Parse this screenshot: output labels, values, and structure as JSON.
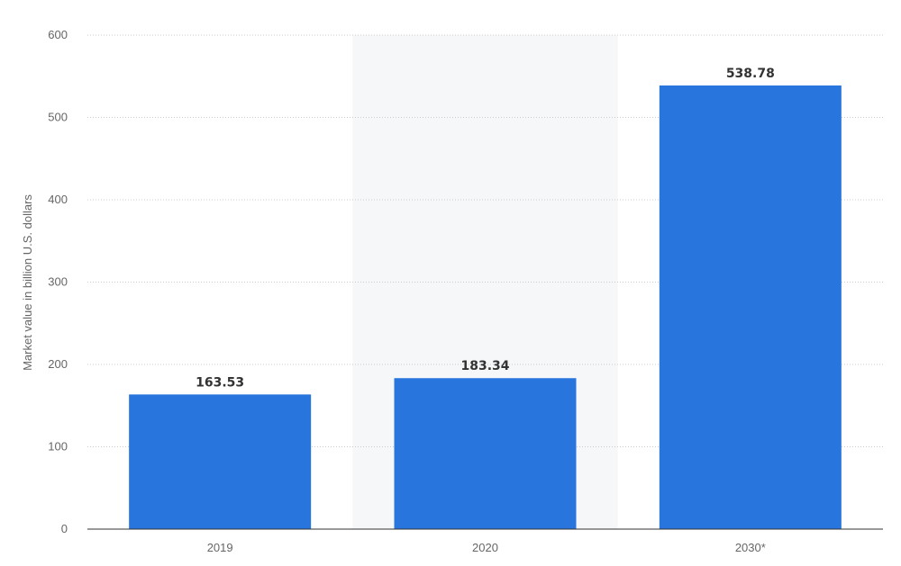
{
  "chart_data": {
    "type": "bar",
    "categories": [
      "2019",
      "2020",
      "2030*"
    ],
    "values": [
      163.53,
      183.34,
      538.78
    ],
    "data_labels": [
      "163.53",
      "183.34",
      "538.78"
    ],
    "ylabel": "Market value in billion U.S. dollars",
    "xlabel": "",
    "ylim": [
      0,
      600
    ],
    "yticks": [
      0,
      100,
      200,
      300,
      400,
      500,
      600
    ],
    "ytick_labels": [
      "0",
      "100",
      "200",
      "300",
      "400",
      "500",
      "600"
    ],
    "grid": true,
    "legend": "none",
    "highlighted_category": "2020",
    "colors": {
      "bar": "#2775dd",
      "gridline": "#cccccc",
      "axis": "#333333",
      "highlight_band": "#f6f7f8"
    }
  }
}
